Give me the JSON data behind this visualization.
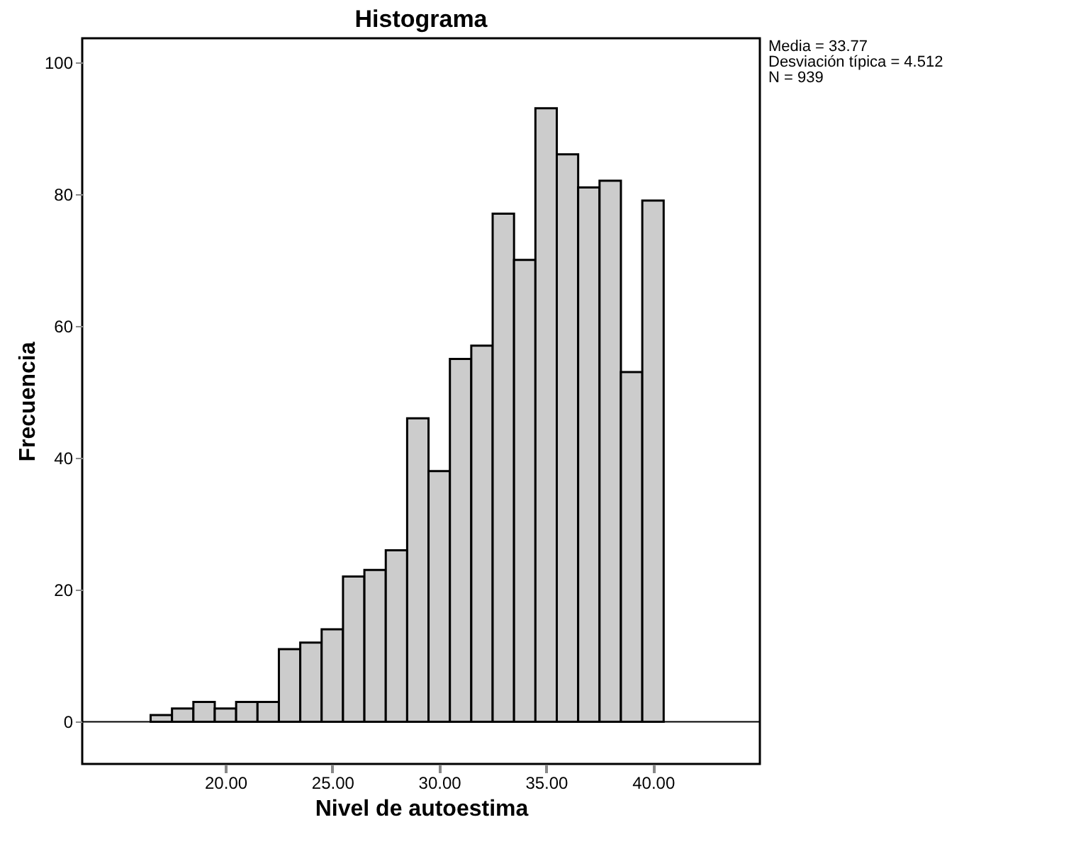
{
  "chart_data": {
    "type": "histogram",
    "title": "Histograma",
    "xlabel": "Nivel de autoestima",
    "ylabel": "Frecuencia",
    "bins": [
      16.5,
      17.5,
      18.5,
      19.5,
      20.5,
      21.5,
      22.5,
      23.5,
      24.5,
      25.5,
      26.5,
      27.5,
      28.5,
      29.5,
      30.5,
      31.5,
      32.5,
      33.5,
      34.5,
      35.5,
      36.5,
      37.5,
      38.5,
      39.5,
      40.5
    ],
    "values": [
      1,
      2,
      3,
      2,
      3,
      3,
      11,
      12,
      14,
      22,
      23,
      26,
      46,
      38,
      55,
      57,
      77,
      70,
      93,
      86,
      81,
      82,
      53,
      79
    ],
    "color": "#cccccc",
    "xlim": [
      13.3,
      45.0
    ],
    "ylim": [
      -6.4,
      103.6
    ],
    "xticks": [
      {
        "value": 20,
        "label": "20.00"
      },
      {
        "value": 25,
        "label": "25.00"
      },
      {
        "value": 30,
        "label": "30.00"
      },
      {
        "value": 35,
        "label": "35.00"
      },
      {
        "value": 40,
        "label": "40.00"
      }
    ],
    "yticks": [
      0,
      20,
      40,
      60,
      80,
      100
    ],
    "grid": false,
    "ref_lines": [
      {
        "axis": "y",
        "value": 0
      }
    ],
    "annotations": [
      "Media = 33.77",
      "Desviación típica = 4.512",
      "N = 939"
    ]
  }
}
